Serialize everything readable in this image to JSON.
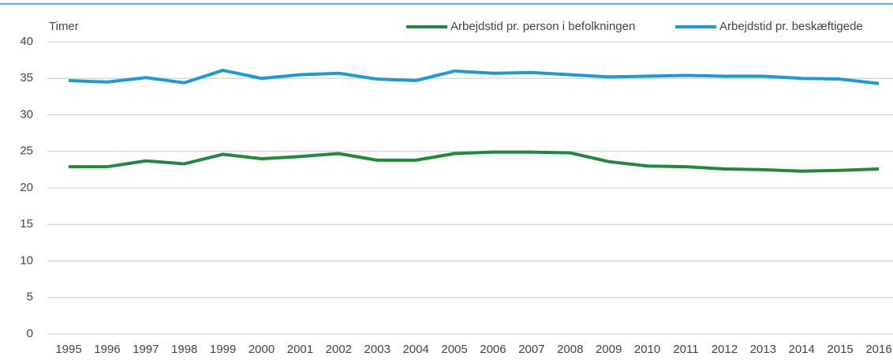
{
  "chart_data": {
    "type": "line",
    "y_label": "Timer",
    "categories": [
      "1995",
      "1996",
      "1997",
      "1998",
      "1999",
      "2000",
      "2001",
      "2002",
      "2003",
      "2004",
      "2005",
      "2006",
      "2007",
      "2008",
      "2009",
      "2010",
      "2011",
      "2012",
      "2013",
      "2014",
      "2015",
      "2016"
    ],
    "series": [
      {
        "name": "Arbejdstid pr. person i befolkningen",
        "color": "#1e8a3e",
        "values": [
          22.9,
          22.9,
          23.7,
          23.3,
          24.6,
          24.0,
          24.3,
          24.7,
          23.8,
          23.8,
          24.7,
          24.9,
          24.9,
          24.8,
          23.6,
          23.0,
          22.9,
          22.6,
          22.5,
          22.3,
          22.4,
          22.6
        ]
      },
      {
        "name": "Arbejdstid pr. beskæftigede",
        "color": "#1a9ad6",
        "values": [
          34.7,
          34.5,
          35.1,
          34.4,
          36.1,
          35.0,
          35.5,
          35.7,
          34.9,
          34.7,
          36.0,
          35.7,
          35.8,
          35.5,
          35.2,
          35.3,
          35.4,
          35.3,
          35.3,
          35.0,
          34.9,
          34.3
        ]
      }
    ],
    "ylim": [
      0,
      40
    ],
    "yticks": [
      0,
      5,
      10,
      15,
      20,
      25,
      30,
      35,
      40
    ],
    "grid": true,
    "legend": "top-right"
  }
}
